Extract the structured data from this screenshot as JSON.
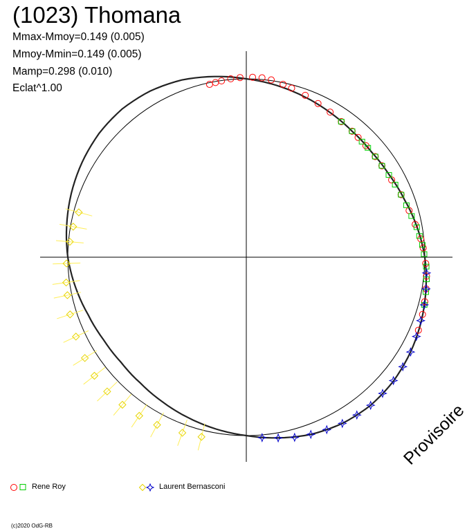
{
  "title": "(1023) Thomana",
  "stats": [
    "Mmax-Mmoy=0.149 (0.005)",
    "Mmoy-Mmin=0.149 (0.005)",
    "Mamp=0.298 (0.010)",
    "Eclat^1.00"
  ],
  "stamp": "Provisoire",
  "credit": "(c)2020 OdG-RB",
  "legend": [
    {
      "label": "Rene Roy",
      "markers": [
        "circle",
        "square"
      ],
      "colors": [
        "#ff0000",
        "#00cc00"
      ]
    },
    {
      "label": "Laurent Bernasconi",
      "markers": [
        "diamond",
        "star"
      ],
      "colors": [
        "#ffff00",
        "#0000cc"
      ]
    }
  ],
  "chart_data": {
    "type": "scatter",
    "projection": "polar",
    "reference_circle_radius": 1.0,
    "deviation_scale": 1.0,
    "grid": "crosshair",
    "legend_position": "bottom",
    "fit_curve": [
      [
        0,
        0.0
      ],
      [
        10,
        -0.115
      ],
      [
        20,
        -0.23
      ],
      [
        30,
        -0.33
      ],
      [
        40,
        -0.41
      ],
      [
        50,
        -0.44
      ],
      [
        60,
        -0.4
      ],
      [
        70,
        -0.3
      ],
      [
        80,
        -0.15
      ],
      [
        90,
        0.0
      ],
      [
        100,
        0.115
      ],
      [
        110,
        0.23
      ],
      [
        120,
        0.33
      ],
      [
        130,
        0.41
      ],
      [
        140,
        0.44
      ],
      [
        150,
        0.4
      ],
      [
        160,
        0.3
      ],
      [
        170,
        0.15
      ],
      [
        180,
        0.0
      ],
      [
        190,
        -0.115
      ],
      [
        200,
        -0.23
      ],
      [
        210,
        -0.33
      ],
      [
        220,
        -0.41
      ],
      [
        230,
        -0.44
      ],
      [
        240,
        -0.4
      ],
      [
        250,
        -0.3
      ],
      [
        260,
        -0.15
      ],
      [
        270,
        0.0
      ],
      [
        280,
        0.115
      ],
      [
        290,
        0.23
      ],
      [
        300,
        0.33
      ],
      [
        310,
        0.41
      ],
      [
        320,
        0.44
      ],
      [
        330,
        0.4
      ],
      [
        340,
        0.3
      ],
      [
        350,
        0.15
      ]
    ],
    "series": [
      {
        "marker": "circle",
        "color": "#ff0000",
        "points": [
          [
            -12,
            -0.05
          ],
          [
            -10,
            -0.03
          ],
          [
            -8,
            -0.01
          ],
          [
            -5,
            0.02
          ],
          [
            -2,
            0.04
          ],
          [
            2,
            0.05
          ],
          [
            5,
            0.05
          ],
          [
            8,
            0.02
          ],
          [
            12,
            -0.05
          ],
          [
            15,
            -0.1
          ],
          [
            20,
            -0.18
          ],
          [
            25,
            -0.26
          ],
          [
            30,
            -0.32
          ],
          [
            35,
            -0.38
          ],
          [
            40,
            -0.41
          ],
          [
            43,
            -0.43
          ],
          [
            47,
            -0.44
          ],
          [
            52,
            -0.44
          ],
          [
            56,
            -0.44
          ],
          [
            62,
            -0.41
          ],
          [
            68,
            -0.34
          ],
          [
            74,
            -0.27
          ],
          [
            79,
            -0.19
          ],
          [
            84,
            -0.09
          ],
          [
            87,
            -0.04
          ],
          [
            92,
            0.03
          ],
          [
            96,
            0.08
          ],
          [
            100,
            0.12
          ],
          [
            104,
            0.16
          ],
          [
            108,
            0.2
          ],
          [
            113,
            0.25
          ]
        ]
      },
      {
        "marker": "square",
        "color": "#00cc00",
        "points": [
          [
            35,
            -0.38
          ],
          [
            40,
            -0.41
          ],
          [
            45,
            -0.44
          ],
          [
            48,
            -0.44
          ],
          [
            52,
            -0.44
          ],
          [
            56,
            -0.44
          ],
          [
            60,
            -0.41
          ],
          [
            64,
            -0.38
          ],
          [
            68,
            -0.34
          ],
          [
            72,
            -0.3
          ],
          [
            76,
            -0.24
          ],
          [
            80,
            -0.16
          ],
          [
            83,
            -0.12
          ],
          [
            86,
            -0.06
          ],
          [
            89,
            -0.02
          ],
          [
            93,
            0.05
          ],
          [
            97,
            0.09
          ],
          [
            101,
            0.13
          ],
          [
            105,
            0.17
          ]
        ]
      },
      {
        "marker": "diamond",
        "color": "#ffff00",
        "points": [
          [
            285,
            -0.15
          ],
          [
            280,
            -0.08
          ],
          [
            275,
            -0.04
          ],
          [
            268,
            0.04
          ],
          [
            262,
            0.1
          ],
          [
            258,
            0.13
          ],
          [
            252,
            0.2
          ],
          [
            245,
            0.28
          ],
          [
            238,
            0.35
          ],
          [
            232,
            0.42
          ],
          [
            226,
            0.44
          ],
          [
            220,
            0.42
          ],
          [
            214,
            0.38
          ],
          [
            208,
            0.34
          ],
          [
            200,
            0.25
          ],
          [
            194,
            0.2
          ]
        ]
      },
      {
        "marker": "star",
        "color": "#0000cc",
        "points": [
          [
            95,
            0.07
          ],
          [
            100,
            0.12
          ],
          [
            105,
            0.17
          ],
          [
            110,
            0.21
          ],
          [
            115,
            0.27
          ],
          [
            120,
            0.33
          ],
          [
            125,
            0.37
          ],
          [
            130,
            0.4
          ],
          [
            135,
            0.42
          ],
          [
            140,
            0.44
          ],
          [
            145,
            0.42
          ],
          [
            150,
            0.4
          ],
          [
            155,
            0.35
          ],
          [
            160,
            0.3
          ],
          [
            165,
            0.24
          ],
          [
            170,
            0.15
          ],
          [
            175,
            0.08
          ]
        ]
      }
    ]
  }
}
